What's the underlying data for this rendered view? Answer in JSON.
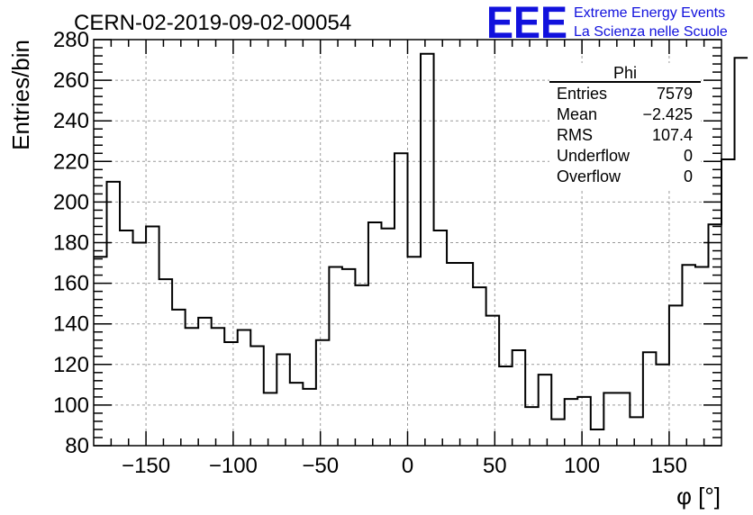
{
  "chart_data": {
    "type": "histogram",
    "title": "CERN-02-2019-09-02-00054",
    "xlabel": "φ [°]",
    "ylabel": "Entries/bin",
    "xlim": [
      -180,
      180
    ],
    "ylim": [
      80,
      280
    ],
    "xticks": [
      -150,
      -100,
      -50,
      0,
      50,
      100,
      150
    ],
    "yticks": [
      80,
      100,
      120,
      140,
      160,
      180,
      200,
      220,
      240,
      260,
      280
    ],
    "xtick_labels": [
      "−150",
      "−100",
      "−50",
      "0",
      "50",
      "100",
      "150"
    ],
    "ytick_labels": [
      "80",
      "100",
      "120",
      "140",
      "160",
      "180",
      "200",
      "220",
      "240",
      "260",
      "280"
    ],
    "grid": true,
    "bin_edges_start": -180,
    "bin_width": 7.5,
    "values": [
      173,
      210,
      186,
      180,
      188,
      162,
      147,
      138,
      143,
      138,
      131,
      137,
      129,
      106,
      125,
      111,
      108,
      132,
      168,
      167,
      159,
      190,
      187,
      224,
      173,
      273,
      186,
      170,
      170,
      158,
      144,
      119,
      127,
      99,
      115,
      93,
      103,
      104,
      88,
      106,
      106,
      94,
      126,
      120,
      149,
      169,
      168,
      189,
      221,
      271
    ]
  },
  "stats_box": {
    "title": "Phi",
    "rows": [
      {
        "label": "Entries",
        "value": "7579"
      },
      {
        "label": "Mean",
        "value": "−2.425"
      },
      {
        "label": "RMS",
        "value": "107.4"
      },
      {
        "label": "Underflow",
        "value": "0"
      },
      {
        "label": "Overflow",
        "value": "0"
      }
    ]
  },
  "logo": {
    "mark": "EEE",
    "line1": "Extreme Energy Events",
    "line2": "La Scienza nelle Scuole",
    "color": "#1111dd"
  }
}
